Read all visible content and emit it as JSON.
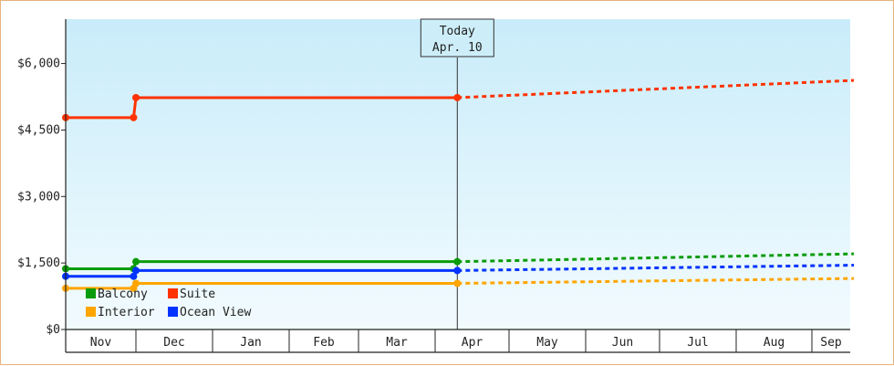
{
  "chart_data": {
    "type": "line",
    "title": "",
    "xlabel": "",
    "ylabel": "",
    "currency": "$",
    "ylim": [
      0,
      7000
    ],
    "y_ticks": [
      0,
      1500,
      3000,
      4500,
      6000
    ],
    "y_tick_labels": [
      "$0",
      "$1,500",
      "$3,000",
      "$4,500",
      "$6,000"
    ],
    "months": [
      "Nov",
      "Dec",
      "Jan",
      "Feb",
      "Mar",
      "Apr",
      "May",
      "Jun",
      "Jul",
      "Aug",
      "Sep"
    ],
    "today": {
      "label": "Today",
      "date": "Apr. 10"
    },
    "legend_position": "bottom-left",
    "grid": false,
    "series": [
      {
        "name": "Balcony",
        "color": "#0a9c0a",
        "actual": [
          [
            "Oct 31",
            1370
          ],
          [
            "Nov 30",
            1370
          ],
          [
            "Dec 1",
            1530
          ],
          [
            "Apr 10",
            1530
          ]
        ],
        "forecast": [
          [
            "Apr 10",
            1530
          ],
          [
            "Sep 30",
            1720
          ]
        ]
      },
      {
        "name": "Suite",
        "color": "#ff3300",
        "actual": [
          [
            "Oct 31",
            4780
          ],
          [
            "Nov 30",
            4780
          ],
          [
            "Dec 1",
            5230
          ],
          [
            "Apr 10",
            5230
          ]
        ],
        "forecast": [
          [
            "Apr 10",
            5230
          ],
          [
            "Sep 30",
            5650
          ]
        ]
      },
      {
        "name": "Interior",
        "color": "#ffa500",
        "actual": [
          [
            "Oct 31",
            930
          ],
          [
            "Nov 30",
            930
          ],
          [
            "Dec 1",
            1040
          ],
          [
            "Apr 10",
            1040
          ]
        ],
        "forecast": [
          [
            "Apr 10",
            1040
          ],
          [
            "Sep 30",
            1160
          ]
        ]
      },
      {
        "name": "Ocean View",
        "color": "#0033ff",
        "actual": [
          [
            "Oct 31",
            1200
          ],
          [
            "Nov 30",
            1200
          ],
          [
            "Dec 1",
            1330
          ],
          [
            "Apr 10",
            1330
          ]
        ],
        "forecast": [
          [
            "Apr 10",
            1330
          ],
          [
            "Sep 30",
            1460
          ]
        ]
      }
    ]
  }
}
